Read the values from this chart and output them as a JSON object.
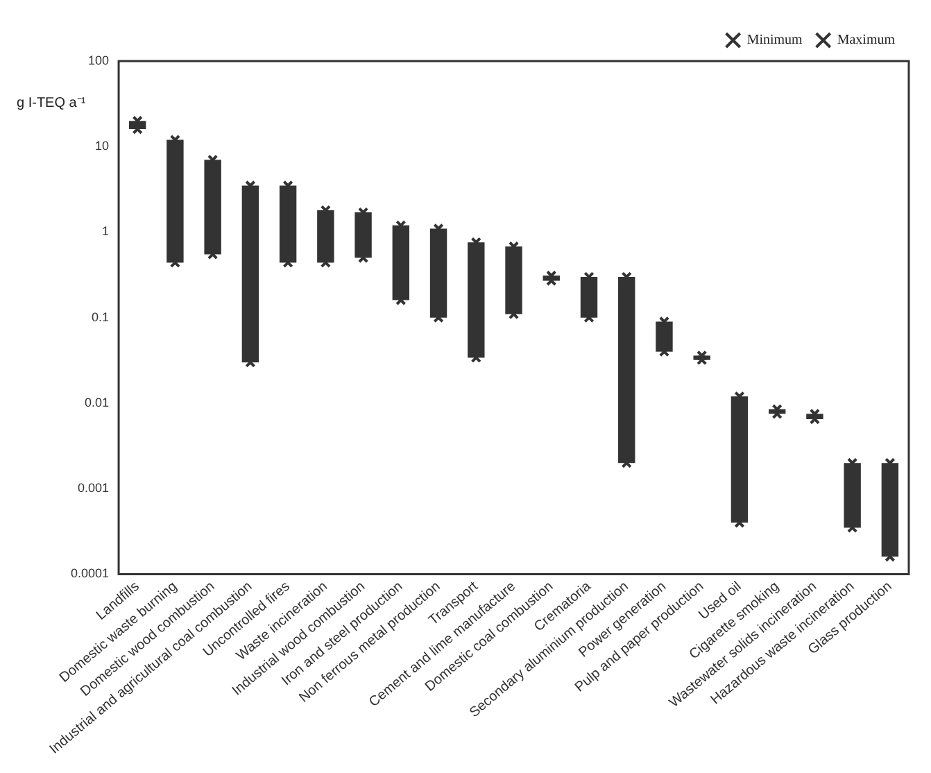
{
  "chart_data": {
    "type": "bar",
    "ylabel": "g I-TEQ a⁻¹",
    "categories": [
      "Landfills",
      "Domestic waste burning",
      "Domestic wood combustion",
      "Industrial and agricultural coal combustion",
      "Uncontrolled fires",
      "Waste incineration",
      "Industrial wood combustion",
      "Iron and steel production",
      "Non ferrous metal production",
      "Transport",
      "Cement and lime manufacture",
      "Domestic coal combustion",
      "Crematoria",
      "Secondary aluminium production",
      "Power generation",
      "Pulp and paper production",
      "Used oil",
      "Cigarette smoking",
      "Wastewater solids incineration",
      "Hazardous waste incineration",
      "Glass production"
    ],
    "series": [
      {
        "color": "#333333",
        "base": [
          16,
          0.44,
          0.55,
          0.03,
          0.44,
          0.44,
          0.5,
          0.16,
          0.1,
          0.034,
          0.11,
          0.27,
          0.1,
          0.002,
          0.04,
          0.032,
          0.0004,
          0.0075,
          0.0065,
          0.00035,
          0.00016
        ],
        "values": [
          4,
          11.56,
          6.45,
          3.47,
          3.06,
          1.36,
          1.2,
          1.04,
          1.0,
          0.726,
          0.57,
          0.04,
          0.2,
          0.298,
          0.05,
          0.004,
          0.0116,
          0.001,
          0.001,
          0.00165,
          0.00184
        ]
      },
      {
        "type": "scatter",
        "name": "Minimum",
        "color": "#333333",
        "marker": "cross",
        "values": [
          16,
          0.44,
          0.55,
          0.03,
          0.44,
          0.44,
          0.5,
          0.16,
          0.1,
          0.034,
          0.11,
          0.27,
          0.1,
          0.002,
          0.04,
          0.032,
          0.0004,
          0.0075,
          0.0065,
          0.00035,
          0.00016
        ]
      },
      {
        "type": "scatter",
        "name": "Maximum",
        "color": "#333333",
        "marker": "cross",
        "values": [
          20,
          12,
          7,
          3.5,
          3.5,
          1.8,
          1.7,
          1.2,
          1.1,
          0.76,
          0.68,
          0.31,
          0.3,
          0.3,
          0.09,
          0.036,
          0.012,
          0.0085,
          0.0075,
          0.002,
          0.002
        ]
      }
    ],
    "log": "y",
    "ylim": [
      0.0001,
      100
    ],
    "yticks": [
      0.0001,
      0.001,
      0.01,
      0.1,
      1,
      10,
      100
    ],
    "grid": false,
    "legend": "top right"
  }
}
